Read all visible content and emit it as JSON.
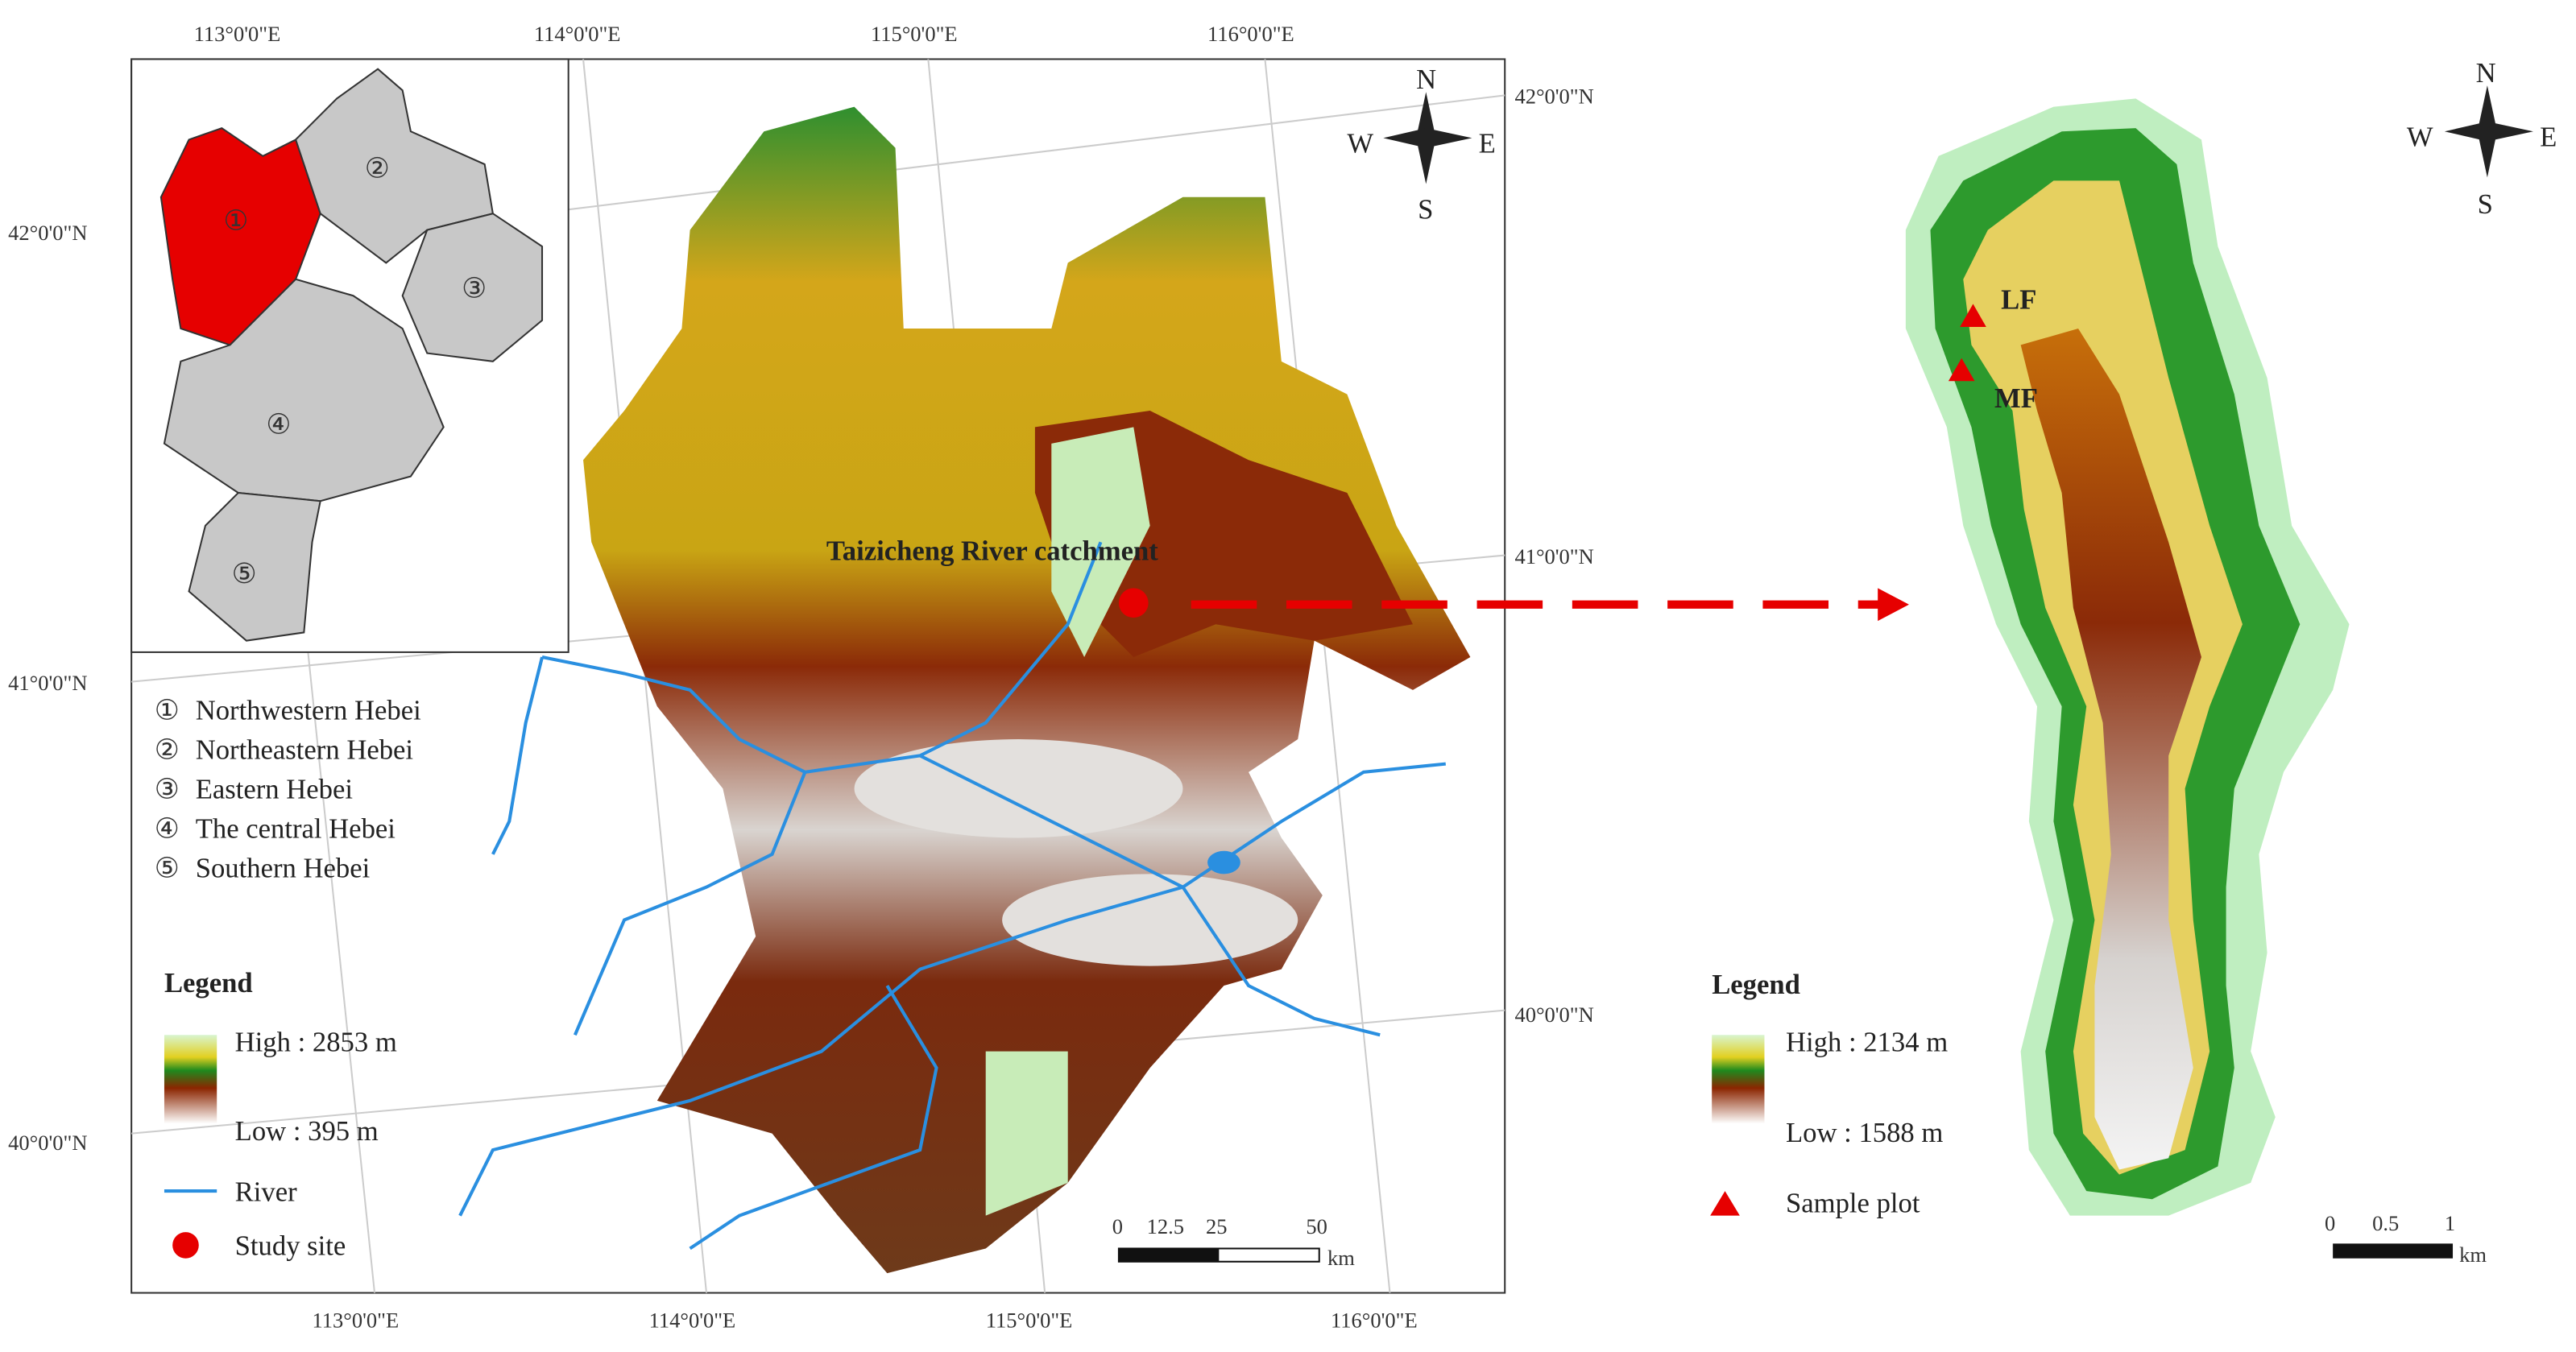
{
  "left_map": {
    "top_lon_labels": [
      "113°0'0\"E",
      "114°0'0\"E",
      "115°0'0\"E",
      "116°0'0\"E"
    ],
    "bottom_lon_labels": [
      "113°0'0\"E",
      "114°0'0\"E",
      "115°0'0\"E",
      "116°0'0\"E"
    ],
    "left_lat_labels": [
      "42°0'0\"N",
      "41°0'0\"N",
      "40°0'0\"N"
    ],
    "right_lat_labels": [
      "42°0'0\"N",
      "41°0'0\"N",
      "40°0'0\"N"
    ],
    "compass": {
      "n": "N",
      "w": "W",
      "e": "E",
      "s": "S"
    },
    "site_label": "Taizicheng River catchment",
    "inset_numbers": [
      "①",
      "②",
      "③",
      "④",
      "⑤"
    ],
    "regions": [
      {
        "num": "①",
        "name": "Northwestern Hebei"
      },
      {
        "num": "②",
        "name": "Northeastern Hebei"
      },
      {
        "num": "③",
        "name": "Eastern Hebei"
      },
      {
        "num": "④",
        "name": "The central Hebei"
      },
      {
        "num": "⑤",
        "name": "Southern Hebei"
      }
    ],
    "legend": {
      "title": "Legend",
      "high": "High : 2853 m",
      "low": "Low : 395 m",
      "river": "River",
      "site": "Study site"
    },
    "scale": {
      "ticks": [
        "0",
        "12.5",
        "25",
        "50"
      ],
      "unit": "km"
    }
  },
  "right_map": {
    "compass": {
      "n": "N",
      "w": "W",
      "e": "E",
      "s": "S"
    },
    "plots": [
      "LF",
      "MF"
    ],
    "legend": {
      "title": "Legend",
      "high": "High : 2134 m",
      "low": "Low : 1588 m",
      "sample": "Sample plot"
    },
    "scale": {
      "ticks": [
        "0",
        "0.5",
        "1"
      ],
      "unit": "km"
    }
  }
}
